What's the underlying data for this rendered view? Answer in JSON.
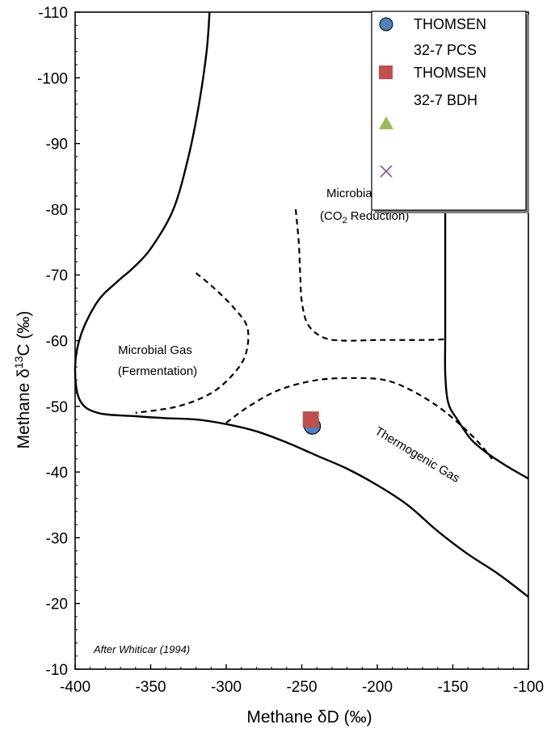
{
  "chart_data": {
    "type": "scatter",
    "xlabel": "Methane δD (‰)",
    "ylabel_parts": {
      "pre": "Methane ",
      "delta": "δ",
      "sup": "13",
      "post": "C (‰)"
    },
    "xlim": [
      -400,
      -100
    ],
    "ylim": [
      -10,
      -110
    ],
    "x_ticks": [
      "-400",
      "-350",
      "-300",
      "-250",
      "-200",
      "-150",
      "-100"
    ],
    "y_ticks": [
      "-110",
      "-100",
      "-90",
      "-80",
      "-70",
      "-60",
      "-50",
      "-40",
      "-30",
      "-20",
      "-10"
    ],
    "series": [
      {
        "name": "THOMSEN 32-7 PCS",
        "marker": "circle",
        "color": "#4f81bd",
        "x": [
          -243
        ],
        "y": [
          -47
        ]
      },
      {
        "name": "THOMSEN 32-7 BDH",
        "marker": "square",
        "color": "#c0504d",
        "x": [
          -244
        ],
        "y": [
          -48
        ]
      },
      {
        "name": "",
        "marker": "triangle",
        "color": "#9bbb59",
        "x": [],
        "y": []
      },
      {
        "name": "",
        "marker": "x",
        "color": "#8064a2",
        "x": [],
        "y": []
      }
    ],
    "legend": {
      "placement": "top-right",
      "lines": [
        {
          "text": "THOMSEN"
        },
        {
          "text": "32-7 PCS"
        },
        {
          "text": "THOMSEN"
        },
        {
          "text": "32-7 BDH"
        }
      ]
    },
    "regions": {
      "fermentation": {
        "line1": "Microbial Gas",
        "line2": "(Fermentation)"
      },
      "co2_reduction": {
        "line1": "Microbial Gas",
        "line2_pre": "(CO",
        "line2_sub": "2",
        "line2_post": " Reduction)"
      },
      "thermogenic": {
        "label": "Thermogenic Gas"
      }
    },
    "credit": "After Whiticar (1994)",
    "boundaries": {
      "solid": [
        [
          [
            -311,
            -110
          ],
          [
            -313,
            -104
          ],
          [
            -318,
            -96
          ],
          [
            -325,
            -88
          ],
          [
            -335,
            -80
          ],
          [
            -350,
            -74
          ],
          [
            -362,
            -71
          ],
          [
            -372,
            -69
          ],
          [
            -385,
            -66
          ],
          [
            -396,
            -61
          ],
          [
            -400,
            -56
          ],
          [
            -397,
            -51
          ],
          [
            -385,
            -49
          ],
          [
            -360,
            -48.5
          ],
          [
            -340,
            -48.2
          ],
          [
            -320,
            -48.0
          ],
          [
            -300,
            -47.3
          ],
          [
            -280,
            -46.2
          ],
          [
            -260,
            -44.5
          ],
          [
            -240,
            -42.5
          ],
          [
            -220,
            -40.5
          ],
          [
            -200,
            -38.0
          ],
          [
            -180,
            -35.0
          ],
          [
            -160,
            -31.0
          ],
          [
            -140,
            -27.5
          ],
          [
            -120,
            -24.5
          ],
          [
            -100,
            -21.0
          ]
        ],
        [
          [
            -155,
            -110
          ],
          [
            -155,
            -94
          ],
          [
            -155,
            -80
          ],
          [
            -155,
            -62
          ],
          [
            -155,
            -55
          ],
          [
            -153,
            -50.5
          ],
          [
            -147,
            -48
          ],
          [
            -138,
            -45
          ],
          [
            -128,
            -43
          ],
          [
            -115,
            -41
          ],
          [
            -100,
            -39
          ]
        ]
      ],
      "dashed": [
        [
          [
            -320,
            -70.3
          ],
          [
            -308,
            -68
          ],
          [
            -295,
            -65
          ],
          [
            -286,
            -62
          ],
          [
            -287,
            -58
          ],
          [
            -295,
            -55
          ],
          [
            -310,
            -52
          ],
          [
            -332,
            -50
          ],
          [
            -360,
            -49
          ]
        ],
        [
          [
            -254,
            -80
          ],
          [
            -252,
            -75
          ],
          [
            -251,
            -70
          ],
          [
            -250,
            -66
          ],
          [
            -246,
            -62.5
          ],
          [
            -236,
            -60.5
          ],
          [
            -222,
            -60
          ],
          [
            -200,
            -60.1
          ],
          [
            -170,
            -60.1
          ],
          [
            -156,
            -60.2
          ]
        ],
        [
          [
            -300,
            -47.5
          ],
          [
            -285,
            -50
          ],
          [
            -265,
            -52.5
          ],
          [
            -240,
            -54
          ],
          [
            -215,
            -54.3
          ],
          [
            -195,
            -54
          ],
          [
            -178,
            -52.5
          ],
          [
            -160,
            -50
          ],
          [
            -145,
            -47.2
          ],
          [
            -133,
            -44.5
          ],
          [
            -124,
            -42
          ]
        ]
      ]
    }
  }
}
